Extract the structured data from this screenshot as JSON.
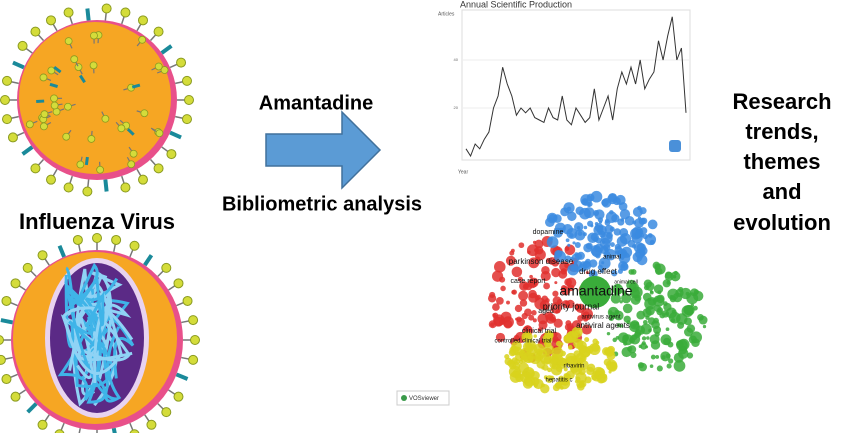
{
  "left": {
    "label": "Influenza Virus"
  },
  "middle": {
    "top": "Amantadine",
    "bottom": "Bibliometric analysis"
  },
  "right": {
    "lines": [
      "Research",
      "trends,",
      "themes",
      "and",
      "evolution"
    ]
  },
  "chart_data": {
    "type": "line",
    "title": "Annual Scientific Production",
    "y_label": "Articles",
    "x_label": "Year",
    "values": [
      3,
      0,
      5,
      3,
      7,
      10,
      20,
      25,
      37,
      30,
      25,
      17,
      20,
      18,
      20,
      16,
      15,
      14,
      20,
      16,
      15,
      25,
      15,
      13,
      20,
      17,
      14,
      16,
      28,
      15,
      20,
      25,
      15,
      28,
      35,
      30,
      37,
      30,
      40,
      28,
      32,
      35,
      48,
      40,
      50,
      58,
      40,
      45,
      18
    ],
    "ylim": [
      0,
      60
    ],
    "yticks": [
      20,
      40
    ],
    "grid": true,
    "color": "#333333"
  },
  "network": {
    "labels": [
      "amantadine",
      "priority journal",
      "drug effect",
      "parkinson disease",
      "dopamine",
      "animal",
      "case report",
      "aged",
      "clinical trial",
      "antiviral agents",
      "antivirus agent",
      "controlled clinical trial",
      "ribavirin",
      "hepatitis c",
      "animal cell"
    ],
    "logo": "VOSviewer"
  }
}
